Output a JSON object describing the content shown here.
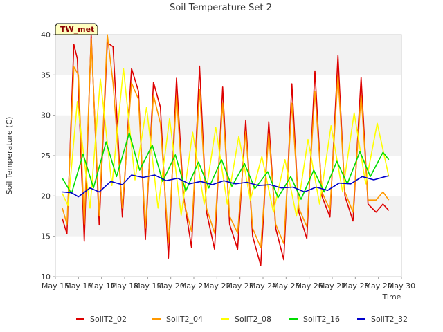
{
  "chart_data": {
    "type": "line",
    "title": "Soil Temperature Set 2",
    "xlabel": "Time",
    "ylabel": "Soil Temperature (C)",
    "site_badge": "TW_met",
    "ylim": [
      10,
      40
    ],
    "yticks": [
      10,
      15,
      20,
      25,
      30,
      35,
      40
    ],
    "xlim": [
      15,
      30
    ],
    "xtick_labels": [
      "May 15",
      "May 16",
      "May 17",
      "May 18",
      "May 19",
      "May 20",
      "May 21",
      "May 22",
      "May 23",
      "May 24",
      "May 25",
      "May 26",
      "May 27",
      "May 28",
      "May 29",
      "May 30"
    ],
    "grid": "alternating horizontal bands",
    "legend_position": "bottom",
    "series": [
      {
        "name": "SoilT2_02",
        "color": "#dd0000",
        "x": [
          15.3,
          15.5,
          15.8,
          15.95,
          16.25,
          16.55,
          16.9,
          17.25,
          17.5,
          17.9,
          18.3,
          18.6,
          18.9,
          19.25,
          19.55,
          19.9,
          20.25,
          20.55,
          20.9,
          21.25,
          21.55,
          21.9,
          22.25,
          22.55,
          22.9,
          23.25,
          23.55,
          23.9,
          24.25,
          24.55,
          24.9,
          25.25,
          25.55,
          25.9,
          26.25,
          26.55,
          26.9,
          27.25,
          27.55,
          27.9,
          28.25,
          28.55,
          28.9,
          29.2,
          29.45
        ],
        "values": [
          17.2,
          15.3,
          38.8,
          37.0,
          14.4,
          40.0,
          16.4,
          39.0,
          38.5,
          17.4,
          35.8,
          33.0,
          14.6,
          34.1,
          31.0,
          12.3,
          34.6,
          20.0,
          13.6,
          36.1,
          18.0,
          13.4,
          33.5,
          16.5,
          13.4,
          29.4,
          15.0,
          11.4,
          29.2,
          16.0,
          12.1,
          33.9,
          18.0,
          14.7,
          35.5,
          20.0,
          17.4,
          37.4,
          20.0,
          16.9,
          34.7,
          19.0,
          18.0,
          19.0,
          18.2
        ]
      },
      {
        "name": "SoilT2_04",
        "color": "#ff9900",
        "x": [
          15.3,
          15.5,
          15.8,
          16.0,
          16.25,
          16.55,
          16.9,
          17.25,
          17.5,
          17.9,
          18.3,
          18.6,
          18.9,
          19.25,
          19.55,
          19.9,
          20.25,
          20.55,
          20.9,
          21.25,
          21.55,
          21.9,
          22.25,
          22.55,
          22.9,
          23.25,
          23.55,
          23.9,
          24.25,
          24.55,
          24.9,
          25.25,
          25.55,
          25.9,
          26.25,
          26.55,
          26.9,
          27.25,
          27.55,
          27.9,
          28.25,
          28.55,
          28.9,
          29.2,
          29.45
        ],
        "values": [
          18.5,
          16.5,
          36.0,
          35.0,
          16.5,
          39.5,
          17.5,
          40.0,
          34.0,
          18.5,
          34.0,
          32.0,
          16.0,
          32.5,
          29.0,
          14.2,
          32.5,
          19.5,
          15.6,
          33.2,
          18.5,
          15.4,
          31.5,
          17.5,
          15.4,
          28.0,
          16.0,
          13.6,
          27.7,
          16.5,
          14.1,
          31.5,
          18.5,
          16.2,
          33.0,
          20.5,
          18.3,
          35.0,
          20.5,
          18.0,
          32.5,
          19.5,
          19.5,
          20.5,
          19.5
        ]
      },
      {
        "name": "SoilT2_08",
        "color": "#ffff00",
        "x": [
          15.3,
          15.55,
          15.95,
          16.5,
          16.95,
          17.45,
          17.95,
          18.45,
          18.95,
          19.45,
          19.95,
          20.45,
          20.95,
          21.45,
          21.95,
          22.45,
          22.95,
          23.45,
          23.95,
          24.45,
          24.95,
          25.45,
          25.95,
          26.45,
          26.95,
          27.45,
          27.95,
          28.45,
          28.95,
          29.45
        ],
        "values": [
          20.3,
          18.8,
          31.7,
          18.5,
          34.5,
          21.3,
          35.8,
          22.0,
          31.0,
          18.5,
          29.6,
          17.6,
          27.9,
          19.0,
          28.5,
          19.0,
          27.4,
          19.5,
          24.9,
          18.0,
          24.5,
          17.5,
          27.0,
          19.0,
          28.7,
          20.5,
          30.3,
          21.5,
          29.0,
          22.4
        ]
      },
      {
        "name": "SoilT2_16",
        "color": "#00dd00",
        "x": [
          15.3,
          15.7,
          16.2,
          16.65,
          17.2,
          17.65,
          18.2,
          18.65,
          19.2,
          19.65,
          20.2,
          20.65,
          21.2,
          21.65,
          22.2,
          22.65,
          23.2,
          23.65,
          24.2,
          24.65,
          25.2,
          25.65,
          26.2,
          26.65,
          27.2,
          27.65,
          28.2,
          28.65,
          29.2,
          29.45
        ],
        "values": [
          22.2,
          20.3,
          25.2,
          21.0,
          26.7,
          22.4,
          27.8,
          23.2,
          26.3,
          21.8,
          25.1,
          20.6,
          24.2,
          21.0,
          24.5,
          21.2,
          24.0,
          20.9,
          23.0,
          19.8,
          22.4,
          19.6,
          23.2,
          20.5,
          24.3,
          21.5,
          25.5,
          22.4,
          25.4,
          24.5
        ]
      },
      {
        "name": "SoilT2_32",
        "color": "#0000cc",
        "x": [
          15.3,
          15.7,
          16.0,
          16.5,
          16.9,
          17.4,
          17.9,
          18.3,
          18.8,
          19.3,
          19.8,
          20.3,
          20.8,
          21.3,
          21.8,
          22.3,
          22.8,
          23.3,
          23.8,
          24.3,
          24.8,
          25.3,
          25.8,
          26.3,
          26.8,
          27.3,
          27.8,
          28.3,
          28.8,
          29.3,
          29.45
        ],
        "values": [
          20.5,
          20.4,
          19.9,
          21.0,
          20.5,
          21.8,
          21.4,
          22.6,
          22.3,
          22.6,
          21.9,
          22.2,
          21.5,
          21.8,
          21.4,
          21.9,
          21.5,
          21.7,
          21.3,
          21.4,
          21.0,
          21.1,
          20.5,
          21.1,
          20.7,
          21.6,
          21.5,
          22.4,
          22.0,
          22.4,
          22.5
        ]
      }
    ]
  }
}
